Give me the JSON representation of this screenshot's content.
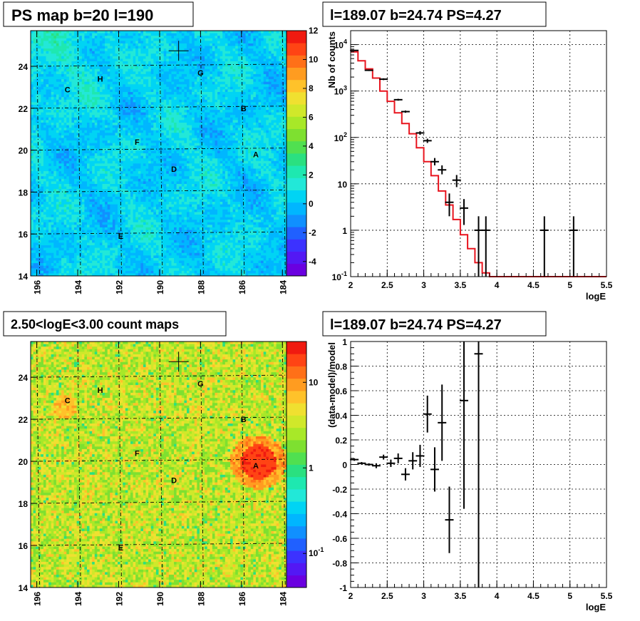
{
  "chart_data": [
    {
      "id": "ps_map",
      "type": "heatmap",
      "title": "PS map b=20 l=190",
      "x_ticks": [
        "196",
        "194",
        "192",
        "190",
        "188",
        "186",
        "184"
      ],
      "x_tick_values": [
        196,
        194,
        192,
        190,
        188,
        186,
        184
      ],
      "y_ticks": [
        "14",
        "16",
        "18",
        "20",
        "22",
        "24"
      ],
      "y_tick_values": [
        14,
        16,
        18,
        20,
        22,
        24
      ],
      "xlim": [
        196.3,
        183.8
      ],
      "ylim": [
        14,
        25.7
      ],
      "colorbar_ticks": [
        "12",
        "10",
        "8",
        "6",
        "4",
        "2",
        "0",
        "-2",
        "-4"
      ],
      "colorbar_values": [
        12,
        10,
        8,
        6,
        4,
        2,
        0,
        -2,
        -4
      ],
      "colorbar_range": [
        -5,
        12
      ],
      "marker": {
        "l": 189.07,
        "b": 24.74
      },
      "sources": [
        {
          "name": "A",
          "l": 185.3,
          "b": 19.8
        },
        {
          "name": "B",
          "l": 185.9,
          "b": 22.0
        },
        {
          "name": "C",
          "l": 194.5,
          "b": 22.9
        },
        {
          "name": "D",
          "l": 189.3,
          "b": 19.1
        },
        {
          "name": "E",
          "l": 191.9,
          "b": 15.9
        },
        {
          "name": "F",
          "l": 191.1,
          "b": 20.4
        },
        {
          "name": "G",
          "l": 188.0,
          "b": 23.7
        },
        {
          "name": "H",
          "l": 192.9,
          "b": 23.4
        }
      ]
    },
    {
      "id": "spectrum",
      "type": "line",
      "title": "l=189.07 b=24.74 PS=4.27",
      "xlabel": "logE",
      "ylabel": "Nb of counts",
      "xlim": [
        2,
        5.5
      ],
      "ylim": [
        0.1,
        20000
      ],
      "yscale": "log",
      "x_ticks": [
        "2",
        "2.5",
        "3",
        "3.5",
        "4",
        "4.5",
        "5",
        "5.5"
      ],
      "x_tick_values": [
        2,
        2.5,
        3,
        3.5,
        4,
        4.5,
        5,
        5.5
      ],
      "y_ticks": [
        "10^-1",
        "1",
        "10",
        "10^2",
        "10^3",
        "10^4"
      ],
      "y_tick_values": [
        0.1,
        1,
        10,
        100,
        1000,
        10000
      ],
      "model_color": "#e8141e",
      "model": {
        "edges": [
          2.0,
          2.1,
          2.2,
          2.3,
          2.4,
          2.5,
          2.6,
          2.7,
          2.8,
          2.9,
          3.0,
          3.1,
          3.2,
          3.3,
          3.4,
          3.5,
          3.6,
          3.7,
          3.8,
          3.9,
          4.0,
          5.5
        ],
        "values": [
          7000,
          4500,
          3000,
          1900,
          1000,
          600,
          340,
          200,
          120,
          60,
          30,
          15,
          7,
          3.5,
          1.7,
          0.8,
          0.4,
          0.2,
          0.12,
          0.1,
          0.1
        ]
      },
      "data": [
        {
          "x": 2.05,
          "y": 7500,
          "lo": 7300,
          "hi": 7700
        },
        {
          "x": 2.25,
          "y": 2800,
          "lo": 2700,
          "hi": 2900
        },
        {
          "x": 2.45,
          "y": 1800,
          "lo": 1720,
          "hi": 1880
        },
        {
          "x": 2.65,
          "y": 650,
          "lo": 620,
          "hi": 680
        },
        {
          "x": 2.75,
          "y": 360,
          "lo": 340,
          "hi": 380
        },
        {
          "x": 2.95,
          "y": 125,
          "lo": 114,
          "hi": 136
        },
        {
          "x": 3.05,
          "y": 85,
          "lo": 76,
          "hi": 94
        },
        {
          "x": 3.15,
          "y": 30,
          "lo": 25,
          "hi": 36
        },
        {
          "x": 3.25,
          "y": 20,
          "lo": 16,
          "hi": 25
        },
        {
          "x": 3.35,
          "y": 4,
          "lo": 2,
          "hi": 6.2
        },
        {
          "x": 3.45,
          "y": 12,
          "lo": 8.5,
          "hi": 15.5
        },
        {
          "x": 3.55,
          "y": 3,
          "lo": 1.3,
          "hi": 4.7
        },
        {
          "x": 3.75,
          "y": 1,
          "lo": 0.1,
          "hi": 2
        },
        {
          "x": 3.85,
          "y": 1,
          "lo": 0.1,
          "hi": 2
        },
        {
          "x": 4.65,
          "y": 1,
          "lo": 0.1,
          "hi": 2
        },
        {
          "x": 5.05,
          "y": 1,
          "lo": 0.1,
          "hi": 2
        }
      ]
    },
    {
      "id": "count_map",
      "type": "heatmap",
      "title": "2.50<logE<3.00 count maps",
      "x_ticks": [
        "196",
        "194",
        "192",
        "190",
        "188",
        "186",
        "184"
      ],
      "x_tick_values": [
        196,
        194,
        192,
        190,
        188,
        186,
        184
      ],
      "y_ticks": [
        "14",
        "16",
        "18",
        "20",
        "22",
        "24"
      ],
      "y_tick_values": [
        14,
        16,
        18,
        20,
        22,
        24
      ],
      "xlim": [
        196.3,
        183.8
      ],
      "ylim": [
        14,
        25.7
      ],
      "colorbar_ticks": [
        "10",
        "1",
        "10^-1"
      ],
      "colorbar_values": [
        10,
        1,
        0.1
      ],
      "colorbar_range": [
        0.04,
        30
      ],
      "colorbar_scale": "log",
      "marker": {
        "l": 189.07,
        "b": 24.74
      },
      "sources": [
        {
          "name": "A",
          "l": 185.3,
          "b": 19.8
        },
        {
          "name": "B",
          "l": 185.9,
          "b": 22.0
        },
        {
          "name": "C",
          "l": 194.5,
          "b": 22.9
        },
        {
          "name": "D",
          "l": 189.3,
          "b": 19.1
        },
        {
          "name": "E",
          "l": 191.9,
          "b": 15.9
        },
        {
          "name": "F",
          "l": 191.1,
          "b": 20.4
        },
        {
          "name": "G",
          "l": 188.0,
          "b": 23.7
        },
        {
          "name": "H",
          "l": 192.9,
          "b": 23.4
        }
      ]
    },
    {
      "id": "residuals",
      "type": "scatter",
      "title": "l=189.07 b=24.74 PS=4.27",
      "xlabel": "logE",
      "ylabel": "(data-model)/model",
      "xlim": [
        2,
        5.5
      ],
      "ylim": [
        -1,
        1
      ],
      "x_ticks": [
        "2",
        "2.5",
        "3",
        "3.5",
        "4",
        "4.5",
        "5",
        "5.5"
      ],
      "x_tick_values": [
        2,
        2.5,
        3,
        3.5,
        4,
        4.5,
        5,
        5.5
      ],
      "y_ticks": [
        "1",
        "0.8",
        "0.6",
        "0.4",
        "0.2",
        "0",
        "-0.2",
        "-0.4",
        "-0.6",
        "-0.8",
        "-1"
      ],
      "y_tick_values": [
        1,
        0.8,
        0.6,
        0.4,
        0.2,
        0,
        -0.2,
        -0.4,
        -0.6,
        -0.8,
        -1
      ],
      "data": [
        {
          "x": 2.05,
          "y": 0.04,
          "err": 0.01
        },
        {
          "x": 2.15,
          "y": 0.01,
          "err": 0.01
        },
        {
          "x": 2.25,
          "y": 0.0,
          "err": 0.01
        },
        {
          "x": 2.35,
          "y": -0.01,
          "err": 0.02
        },
        {
          "x": 2.45,
          "y": 0.06,
          "err": 0.02
        },
        {
          "x": 2.55,
          "y": 0.01,
          "err": 0.03
        },
        {
          "x": 2.65,
          "y": 0.05,
          "err": 0.04
        },
        {
          "x": 2.75,
          "y": -0.08,
          "err": 0.05
        },
        {
          "x": 2.85,
          "y": 0.03,
          "err": 0.07
        },
        {
          "x": 2.95,
          "y": 0.07,
          "err": 0.09
        },
        {
          "x": 3.05,
          "y": 0.41,
          "err": 0.15
        },
        {
          "x": 3.15,
          "y": -0.04,
          "err": 0.18
        },
        {
          "x": 3.25,
          "y": 0.34,
          "err": 0.31
        },
        {
          "x": 3.35,
          "y": -0.45,
          "err": 0.27
        },
        {
          "x": 3.55,
          "y": 0.52,
          "err": 0.88
        },
        {
          "x": 3.75,
          "y": 0.9,
          "err": 1.9
        }
      ]
    }
  ]
}
